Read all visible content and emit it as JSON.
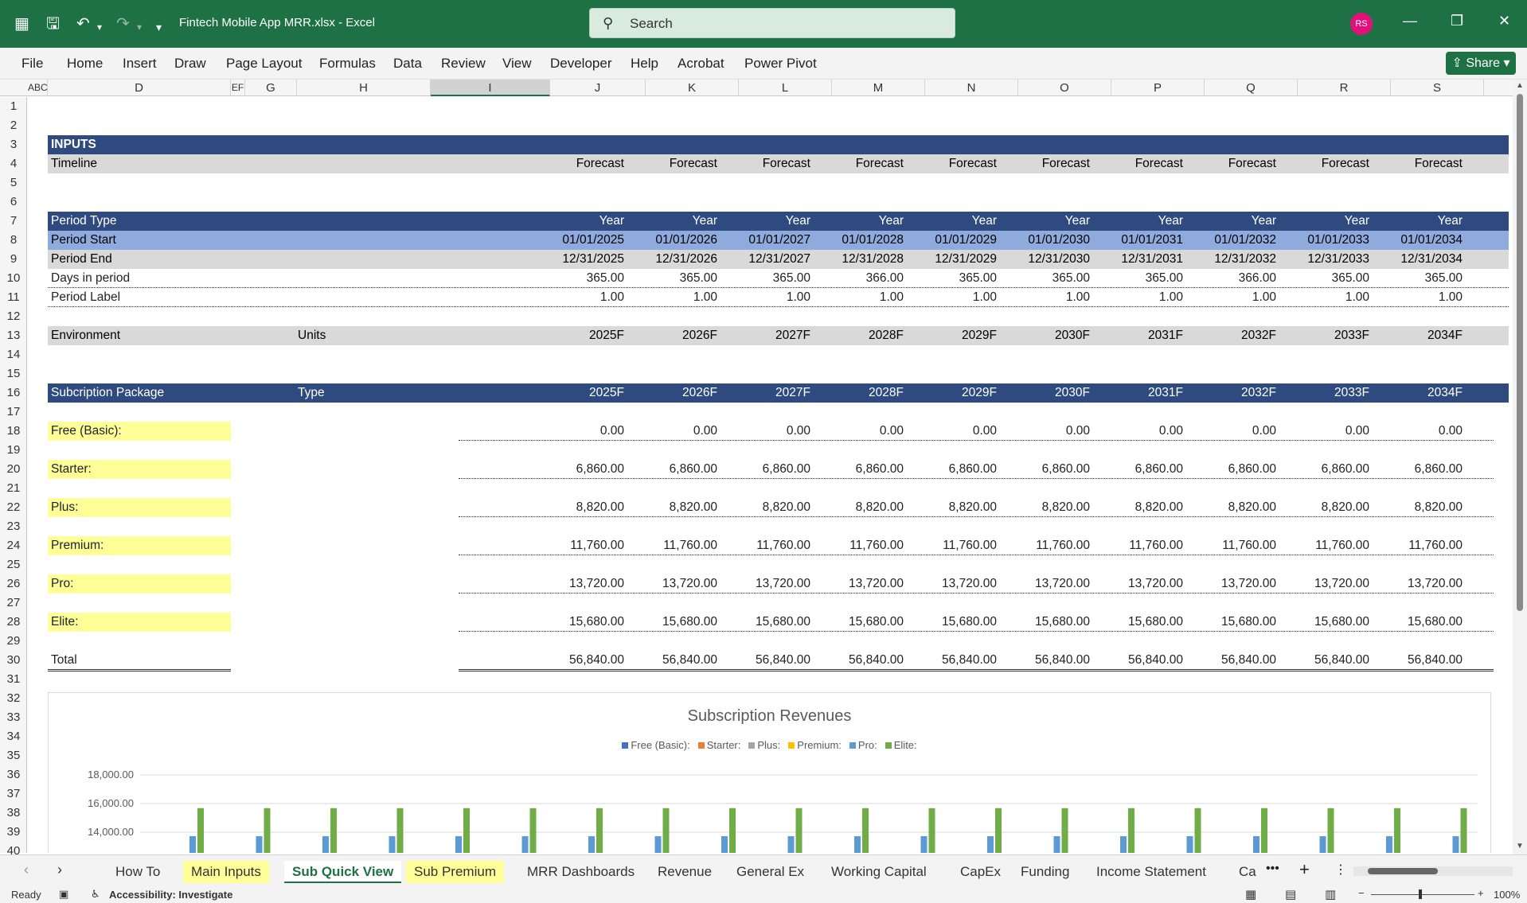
{
  "window": {
    "title": "Fintech Mobile App MRR.xlsx  -  Excel",
    "search_placeholder": "Search",
    "user_initials": "RS"
  },
  "menu": [
    "File",
    "Home",
    "Insert",
    "Draw",
    "Page Layout",
    "Formulas",
    "Data",
    "Review",
    "View",
    "Developer",
    "Help",
    "Acrobat",
    "Power Pivot"
  ],
  "share_label": "Share",
  "columns": [
    "ABC",
    "D",
    "EF",
    "G",
    "H",
    "I",
    "J",
    "K",
    "L",
    "M",
    "N",
    "O",
    "P",
    "Q",
    "R",
    "S"
  ],
  "rows": [
    "1",
    "2",
    "3",
    "4",
    "5",
    "6",
    "7",
    "8",
    "9",
    "10",
    "11",
    "12",
    "13",
    "14",
    "15",
    "16",
    "17",
    "18",
    "19",
    "20",
    "21",
    "22",
    "23",
    "24",
    "25",
    "26",
    "27",
    "28",
    "29",
    "30",
    "31",
    "32",
    "33",
    "34",
    "35",
    "36",
    "37",
    "38",
    "39",
    "40"
  ],
  "inputs": {
    "header": "INPUTS",
    "timeline_label": "Timeline",
    "timeline_values": [
      "Forecast",
      "Forecast",
      "Forecast",
      "Forecast",
      "Forecast",
      "Forecast",
      "Forecast",
      "Forecast",
      "Forecast",
      "Forecast"
    ]
  },
  "period": {
    "type_label": "Period Type",
    "type_values": [
      "Year",
      "Year",
      "Year",
      "Year",
      "Year",
      "Year",
      "Year",
      "Year",
      "Year",
      "Year"
    ],
    "start_label": "Period Start",
    "start_values": [
      "01/01/2025",
      "01/01/2026",
      "01/01/2027",
      "01/01/2028",
      "01/01/2029",
      "01/01/2030",
      "01/01/2031",
      "01/01/2032",
      "01/01/2033",
      "01/01/2034"
    ],
    "end_label": "Period End",
    "end_values": [
      "12/31/2025",
      "12/31/2026",
      "12/31/2027",
      "12/31/2028",
      "12/31/2029",
      "12/31/2030",
      "12/31/2031",
      "12/31/2032",
      "12/31/2033",
      "12/31/2034"
    ],
    "days_label": "Days in period",
    "days_values": [
      "365.00",
      "365.00",
      "365.00",
      "366.00",
      "365.00",
      "365.00",
      "365.00",
      "366.00",
      "365.00",
      "365.00"
    ],
    "label_label": "Period Label",
    "label_values": [
      "1.00",
      "1.00",
      "1.00",
      "1.00",
      "1.00",
      "1.00",
      "1.00",
      "1.00",
      "1.00",
      "1.00"
    ]
  },
  "environment": {
    "label": "Environment",
    "units_label": "Units",
    "years": [
      "2025F",
      "2026F",
      "2027F",
      "2028F",
      "2029F",
      "2030F",
      "2031F",
      "2032F",
      "2033F",
      "2034F"
    ]
  },
  "subscription": {
    "label": "Subcription Package",
    "type_label": "Type",
    "years": [
      "2025F",
      "2026F",
      "2027F",
      "2028F",
      "2029F",
      "2030F",
      "2031F",
      "2032F",
      "2033F",
      "2034F"
    ],
    "packages": [
      {
        "name": "Free (Basic):",
        "values": [
          "0.00",
          "0.00",
          "0.00",
          "0.00",
          "0.00",
          "0.00",
          "0.00",
          "0.00",
          "0.00",
          "0.00"
        ]
      },
      {
        "name": "Starter:",
        "values": [
          "6,860.00",
          "6,860.00",
          "6,860.00",
          "6,860.00",
          "6,860.00",
          "6,860.00",
          "6,860.00",
          "6,860.00",
          "6,860.00",
          "6,860.00"
        ]
      },
      {
        "name": "Plus:",
        "values": [
          "8,820.00",
          "8,820.00",
          "8,820.00",
          "8,820.00",
          "8,820.00",
          "8,820.00",
          "8,820.00",
          "8,820.00",
          "8,820.00",
          "8,820.00"
        ]
      },
      {
        "name": "Premium:",
        "values": [
          "11,760.00",
          "11,760.00",
          "11,760.00",
          "11,760.00",
          "11,760.00",
          "11,760.00",
          "11,760.00",
          "11,760.00",
          "11,760.00",
          "11,760.00"
        ]
      },
      {
        "name": "Pro:",
        "values": [
          "13,720.00",
          "13,720.00",
          "13,720.00",
          "13,720.00",
          "13,720.00",
          "13,720.00",
          "13,720.00",
          "13,720.00",
          "13,720.00",
          "13,720.00"
        ]
      },
      {
        "name": "Elite:",
        "values": [
          "15,680.00",
          "15,680.00",
          "15,680.00",
          "15,680.00",
          "15,680.00",
          "15,680.00",
          "15,680.00",
          "15,680.00",
          "15,680.00",
          "15,680.00"
        ]
      }
    ],
    "total_label": "Total",
    "total_values": [
      "56,840.00",
      "56,840.00",
      "56,840.00",
      "56,840.00",
      "56,840.00",
      "56,840.00",
      "56,840.00",
      "56,840.00",
      "56,840.00",
      "56,840.00"
    ]
  },
  "chart_data": {
    "type": "bar",
    "title": "Subscription Revenues",
    "legend": [
      {
        "name": "Free (Basic):",
        "color": "#4472c4"
      },
      {
        "name": "Starter:",
        "color": "#ed7d31"
      },
      {
        "name": "Plus:",
        "color": "#a5a5a5"
      },
      {
        "name": "Premium:",
        "color": "#ffc000"
      },
      {
        "name": "Pro:",
        "color": "#5b9bd5"
      },
      {
        "name": "Elite:",
        "color": "#70ad47"
      }
    ],
    "yticks": [
      "18,000.00",
      "16,000.00",
      "14,000.00"
    ],
    "ylim": [
      0,
      18000
    ],
    "pro_value": 13720,
    "elite_value": 15680,
    "visible_groups": 20
  },
  "tabs": [
    {
      "label": "How To",
      "style": "normal"
    },
    {
      "label": "Main Inputs",
      "style": "yellow"
    },
    {
      "label": "Sub Quick View",
      "style": "active"
    },
    {
      "label": "Sub Premium",
      "style": "yellow"
    },
    {
      "label": "MRR Dashboards",
      "style": "normal"
    },
    {
      "label": "Revenue",
      "style": "normal"
    },
    {
      "label": "General Ex",
      "style": "normal"
    },
    {
      "label": "Working Capital",
      "style": "normal"
    },
    {
      "label": "CapEx",
      "style": "normal"
    },
    {
      "label": "Funding",
      "style": "normal"
    },
    {
      "label": "Income Statement",
      "style": "normal"
    },
    {
      "label": "Ca",
      "style": "normal"
    }
  ],
  "status": {
    "ready": "Ready",
    "accessibility": "Accessibility: Investigate",
    "zoom": "100%"
  }
}
